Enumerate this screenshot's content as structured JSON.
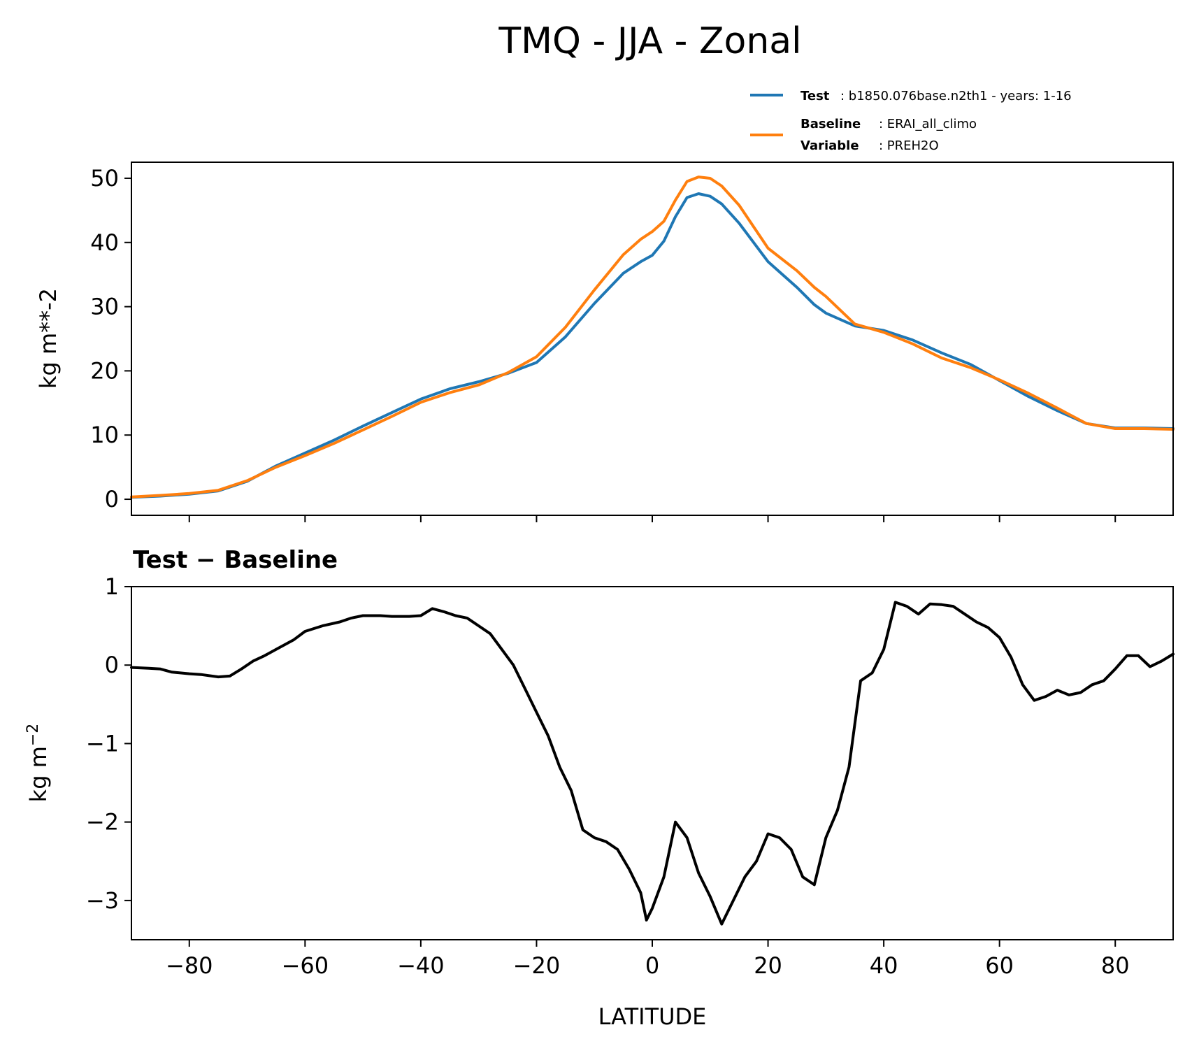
{
  "figure": {
    "title": "TMQ - JJA - Zonal",
    "xlabel": "LATITUDE"
  },
  "legend": {
    "test_key": "Test",
    "test_value": ": b1850.076base.n2th1 - years: 1-16",
    "baseline_key": "Baseline",
    "baseline_value": ": ERAI_all_climo",
    "variable_key": "Variable",
    "variable_value": ": PREH2O",
    "test_color": "#1f77b4",
    "baseline_color": "#ff7f0e"
  },
  "chart_data": [
    {
      "type": "line",
      "title": "",
      "xlabel": "",
      "ylabel": "kg m**-2",
      "xlim": [
        -90,
        90
      ],
      "ylim": [
        -2.5,
        52.5
      ],
      "xticks": [
        -80,
        -60,
        -40,
        -20,
        0,
        20,
        40,
        60,
        80
      ],
      "yticks": [
        0,
        10,
        20,
        30,
        40,
        50
      ],
      "ytick_labels": [
        "0",
        "10",
        "20",
        "30",
        "40",
        "50"
      ],
      "series": [
        {
          "name": "Test",
          "color": "#1f77b4",
          "x": [
            -90,
            -85,
            -80,
            -75,
            -70,
            -65,
            -60,
            -55,
            -50,
            -45,
            -40,
            -35,
            -30,
            -25,
            -20,
            -15,
            -10,
            -5,
            -2,
            0,
            2,
            4,
            6,
            8,
            10,
            12,
            15,
            20,
            25,
            28,
            30,
            35,
            40,
            45,
            50,
            55,
            60,
            65,
            70,
            75,
            80,
            85,
            90
          ],
          "values": [
            0.3,
            0.5,
            0.8,
            1.3,
            2.8,
            5.2,
            7.2,
            9.2,
            11.4,
            13.5,
            15.6,
            17.2,
            18.3,
            19.6,
            21.3,
            25.3,
            30.5,
            35.2,
            37.0,
            38.0,
            40.2,
            44.0,
            47.0,
            47.6,
            47.2,
            46.0,
            43.0,
            37.0,
            33.0,
            30.3,
            29.0,
            27.0,
            26.3,
            24.8,
            22.8,
            21.0,
            18.5,
            16.0,
            13.8,
            11.8,
            11.1,
            11.1,
            11.0
          ]
        },
        {
          "name": "Baseline",
          "color": "#ff7f0e",
          "x": [
            -90,
            -85,
            -80,
            -75,
            -70,
            -65,
            -60,
            -55,
            -50,
            -45,
            -40,
            -35,
            -30,
            -25,
            -20,
            -15,
            -10,
            -5,
            -2,
            0,
            2,
            4,
            6,
            8,
            10,
            12,
            15,
            20,
            25,
            28,
            30,
            35,
            40,
            45,
            50,
            55,
            60,
            65,
            70,
            75,
            80,
            85,
            90
          ],
          "values": [
            0.35,
            0.6,
            0.9,
            1.4,
            2.9,
            5.0,
            6.8,
            8.7,
            10.8,
            12.9,
            15.1,
            16.6,
            17.8,
            19.7,
            22.2,
            26.8,
            32.6,
            38.1,
            40.5,
            41.7,
            43.3,
            46.6,
            49.5,
            50.2,
            50.0,
            48.8,
            45.8,
            39.1,
            35.6,
            33.0,
            31.6,
            27.3,
            26.0,
            24.2,
            22.0,
            20.5,
            18.6,
            16.5,
            14.2,
            11.8,
            11.0,
            11.0,
            10.9
          ]
        }
      ]
    },
    {
      "type": "line",
      "title": "Test − Baseline",
      "xlabel": "LATITUDE",
      "ylabel": "kg m",
      "ylabel_exponent": "−2",
      "xlim": [
        -90,
        90
      ],
      "ylim": [
        -3.5,
        1.0
      ],
      "xticks": [
        -80,
        -60,
        -40,
        -20,
        0,
        20,
        40,
        60,
        80
      ],
      "xtick_labels": [
        "−80",
        "−60",
        "−40",
        "−20",
        "0",
        "20",
        "40",
        "60",
        "80"
      ],
      "yticks": [
        -3,
        -2,
        -1,
        0,
        1
      ],
      "ytick_labels": [
        "−3",
        "−2",
        "−1",
        "0",
        "1"
      ],
      "series": [
        {
          "name": "Test − Baseline",
          "color": "#000000",
          "x": [
            -90,
            -87,
            -85,
            -83,
            -80,
            -78,
            -75,
            -73,
            -71,
            -69,
            -67,
            -65,
            -62,
            -60,
            -57,
            -54,
            -52,
            -50,
            -47,
            -45,
            -42,
            -40,
            -38,
            -36,
            -34,
            -32,
            -30,
            -28,
            -26,
            -24,
            -22,
            -20,
            -18,
            -16,
            -14,
            -12,
            -10,
            -8,
            -6,
            -4,
            -2,
            -1,
            0,
            2,
            4,
            6,
            8,
            10,
            12,
            14,
            16,
            18,
            20,
            22,
            24,
            26,
            28,
            30,
            32,
            34,
            36,
            38,
            40,
            42,
            44,
            46,
            48,
            50,
            52,
            54,
            56,
            58,
            60,
            62,
            64,
            66,
            68,
            70,
            72,
            74,
            76,
            78,
            80,
            82,
            84,
            86,
            88,
            90
          ],
          "values": [
            -0.03,
            -0.04,
            -0.05,
            -0.09,
            -0.11,
            -0.12,
            -0.15,
            -0.14,
            -0.05,
            0.05,
            0.12,
            0.2,
            0.32,
            0.43,
            0.5,
            0.55,
            0.6,
            0.63,
            0.63,
            0.62,
            0.62,
            0.63,
            0.72,
            0.68,
            0.63,
            0.6,
            0.5,
            0.4,
            0.2,
            0.0,
            -0.3,
            -0.6,
            -0.9,
            -1.3,
            -1.6,
            -2.1,
            -2.2,
            -2.25,
            -2.35,
            -2.6,
            -2.9,
            -3.25,
            -3.1,
            -2.7,
            -2.0,
            -2.2,
            -2.65,
            -2.95,
            -3.3,
            -3.0,
            -2.7,
            -2.5,
            -2.15,
            -2.2,
            -2.35,
            -2.7,
            -2.8,
            -2.2,
            -1.85,
            -1.3,
            -0.2,
            -0.1,
            0.2,
            0.8,
            0.75,
            0.65,
            0.78,
            0.77,
            0.75,
            0.65,
            0.55,
            0.48,
            0.35,
            0.1,
            -0.25,
            -0.45,
            -0.4,
            -0.32,
            -0.38,
            -0.35,
            -0.25,
            -0.2,
            -0.05,
            0.12,
            0.12,
            -0.02,
            0.05,
            0.14
          ]
        }
      ]
    }
  ]
}
